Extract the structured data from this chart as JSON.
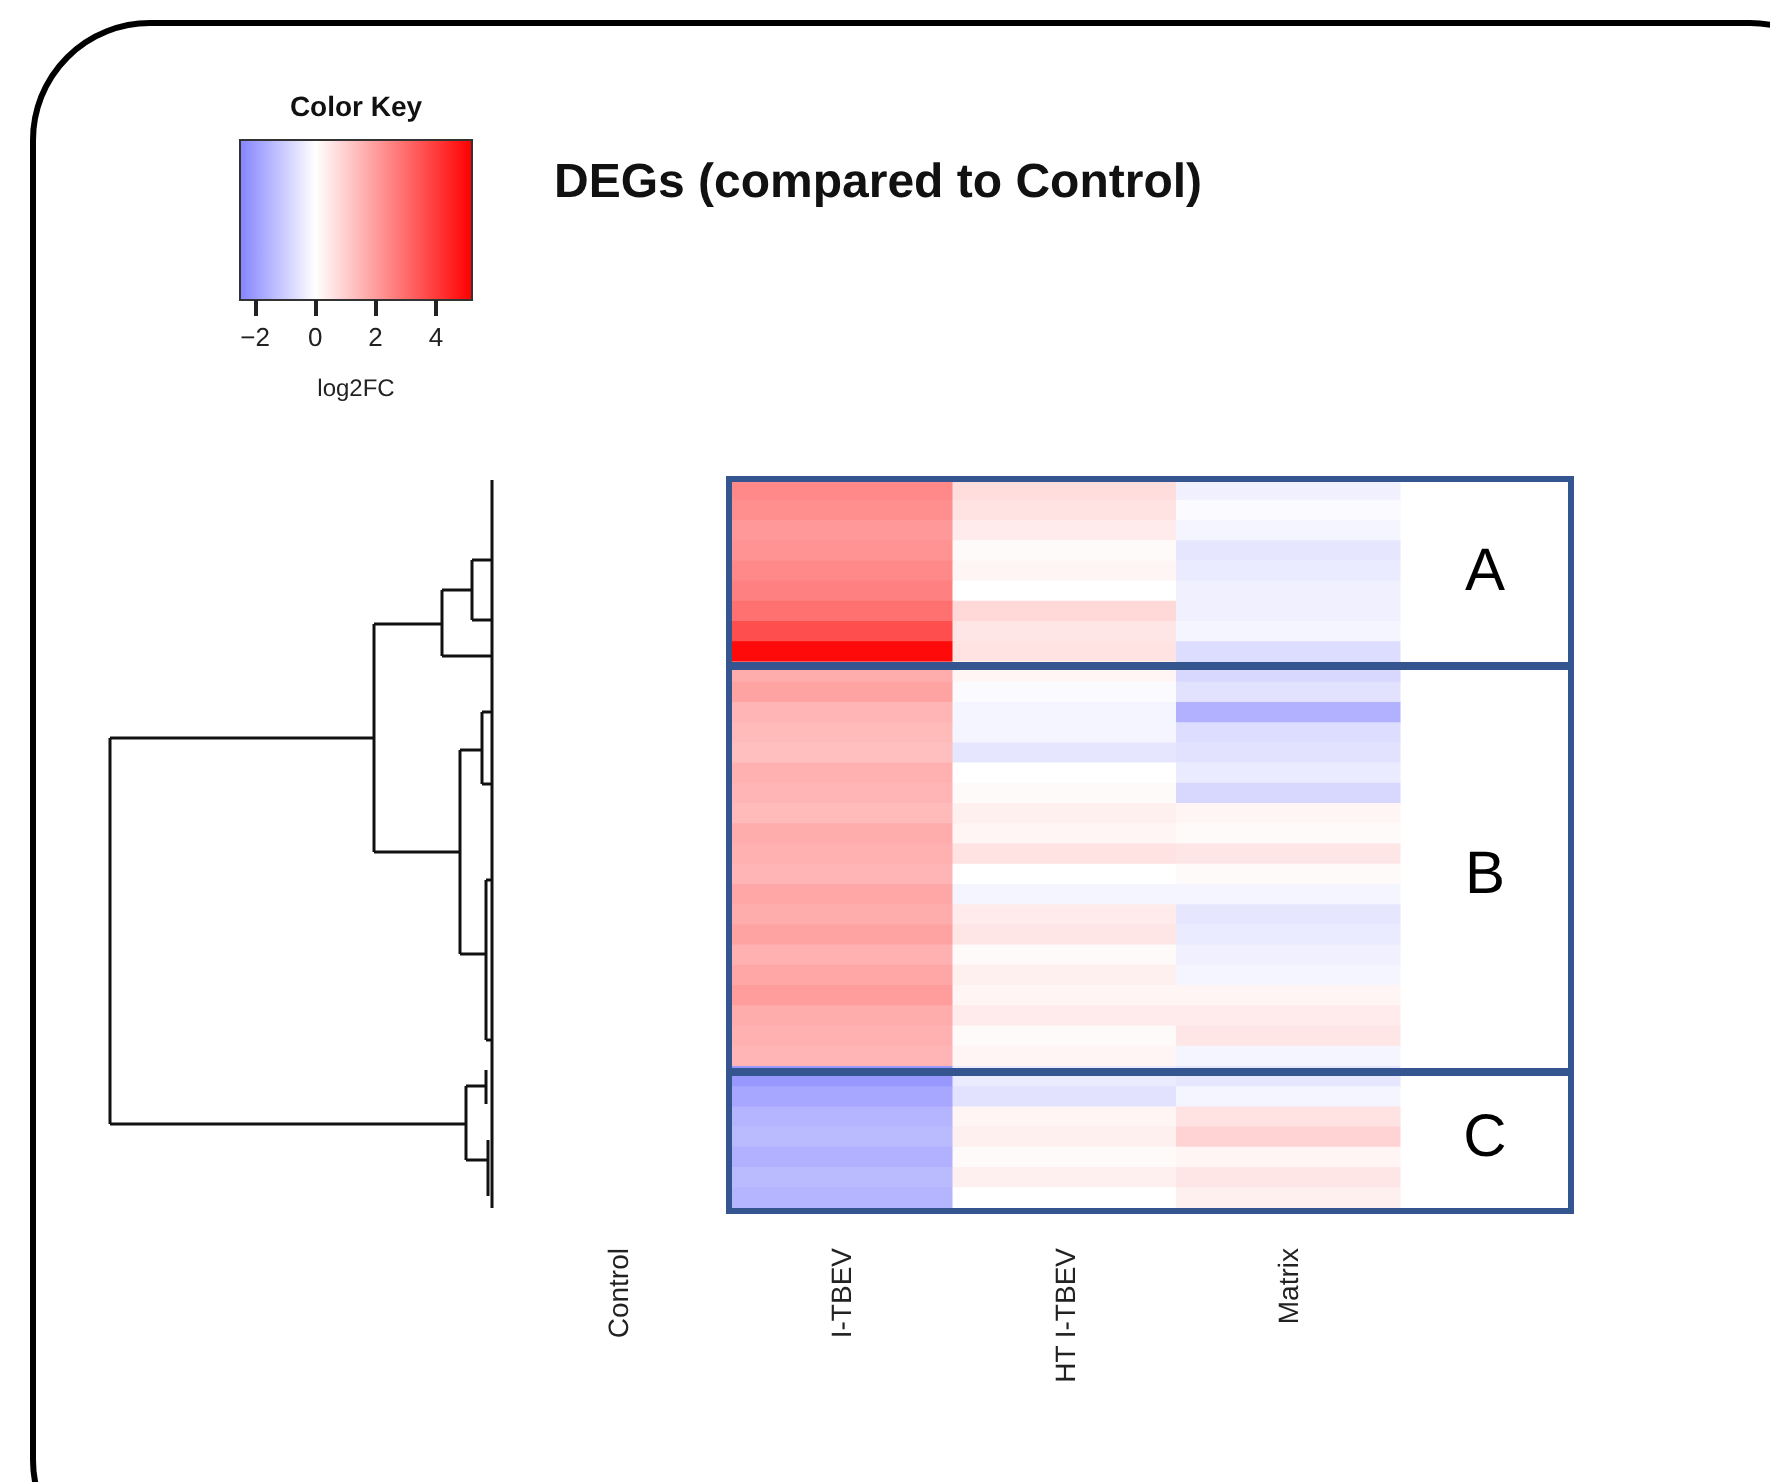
{
  "chart_data": {
    "type": "heatmap",
    "title": "DEGs (compared to Control)",
    "legend_title": "Color Key",
    "clabel": "log2FC",
    "clim": [
      -2.5,
      5.2
    ],
    "cticks": [
      -2,
      0,
      2,
      4
    ],
    "categories": [
      "Control",
      "I-TBEV",
      "HT I-TBEV",
      "Matrix"
    ],
    "y_categories": [
      null,
      null,
      null,
      null,
      null,
      null,
      null,
      null,
      null,
      null,
      null,
      null,
      null,
      null,
      null,
      null,
      null,
      null,
      null,
      null,
      null,
      null,
      null,
      null,
      null,
      null,
      null,
      null,
      null,
      null,
      null,
      null,
      null,
      null,
      null,
      null
    ],
    "y2_categories": [
      null,
      null,
      null,
      null,
      "A",
      null,
      null,
      null,
      null,
      null,
      null,
      null,
      null,
      null,
      null,
      null,
      null,
      null,
      null,
      "B",
      null,
      null,
      null,
      null,
      null,
      null,
      null,
      null,
      null,
      null,
      null,
      null,
      "C",
      null,
      null,
      null
    ],
    "cells": [
      [
        0,
        2.4,
        0.7,
        -0.3
      ],
      [
        0,
        2.3,
        0.6,
        -0.1
      ],
      [
        0,
        2.1,
        0.4,
        -0.2
      ],
      [
        0,
        2.2,
        0.1,
        -0.5
      ],
      [
        0,
        2.4,
        0.2,
        -0.4
      ],
      [
        0,
        2.6,
        0.0,
        -0.3
      ],
      [
        0,
        2.9,
        0.8,
        -0.3
      ],
      [
        0,
        3.6,
        0.5,
        -0.2
      ],
      [
        0,
        5.0,
        0.6,
        -0.7
      ],
      [
        0,
        1.7,
        0.2,
        -0.8
      ],
      [
        0,
        1.9,
        -0.1,
        -0.6
      ],
      [
        0,
        1.5,
        -0.2,
        -1.6
      ],
      [
        0,
        1.4,
        -0.2,
        -0.7
      ],
      [
        0,
        1.3,
        -0.5,
        -0.6
      ],
      [
        0,
        1.6,
        0.0,
        -0.4
      ],
      [
        0,
        1.5,
        0.1,
        -0.8
      ],
      [
        0,
        1.4,
        0.3,
        0.2
      ],
      [
        0,
        1.7,
        0.2,
        0.1
      ],
      [
        0,
        1.6,
        0.6,
        0.5
      ],
      [
        0,
        1.5,
        0.0,
        0.1
      ],
      [
        0,
        1.8,
        -0.2,
        -0.2
      ],
      [
        0,
        1.7,
        0.4,
        -0.5
      ],
      [
        0,
        1.9,
        0.5,
        -0.4
      ],
      [
        0,
        1.6,
        0.1,
        -0.3
      ],
      [
        0,
        1.8,
        0.3,
        -0.2
      ],
      [
        0,
        2.0,
        0.2,
        0.2
      ],
      [
        0,
        1.7,
        0.4,
        0.4
      ],
      [
        0,
        1.6,
        0.1,
        0.5
      ],
      [
        0,
        1.5,
        0.2,
        -0.2
      ],
      [
        0,
        -2.1,
        -0.4,
        -0.5
      ],
      [
        0,
        -1.8,
        -0.6,
        -0.2
      ],
      [
        0,
        -1.5,
        0.2,
        0.6
      ],
      [
        0,
        -1.4,
        0.3,
        0.9
      ],
      [
        0,
        -1.6,
        0.1,
        0.2
      ],
      [
        0,
        -1.4,
        0.3,
        0.5
      ],
      [
        0,
        -1.5,
        0.0,
        0.3
      ]
    ]
  }
}
